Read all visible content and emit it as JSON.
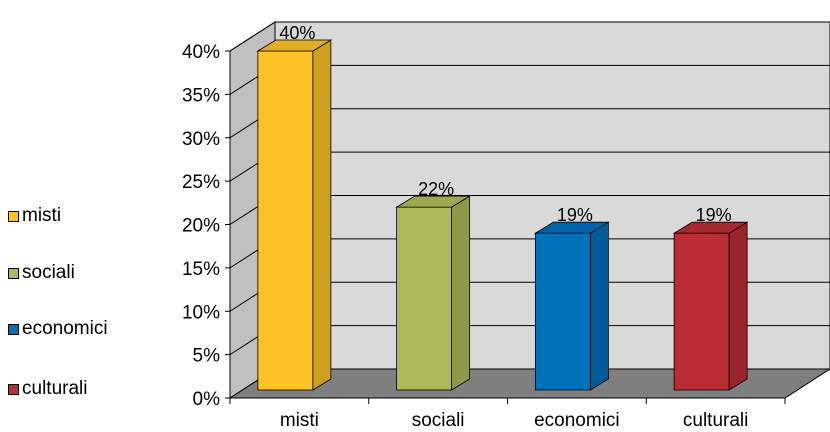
{
  "chart_data": {
    "type": "bar",
    "categories": [
      "misti",
      "sociali",
      "economici",
      "culturali"
    ],
    "values": [
      40,
      22,
      19,
      19
    ],
    "data_labels": [
      "40%",
      "22%",
      "19%",
      "19%"
    ],
    "colors": [
      "#FDC226",
      "#ADBA57",
      "#0070BB",
      "#BA2D35"
    ],
    "y_ticks": [
      "0%",
      "5%",
      "10%",
      "15%",
      "20%",
      "25%",
      "30%",
      "35%",
      "40%"
    ],
    "ylim": [
      0,
      40
    ],
    "grid": true,
    "legend_position": "left",
    "wall_color": "#D9D9D9",
    "floor_color": "#7F7F7F"
  }
}
